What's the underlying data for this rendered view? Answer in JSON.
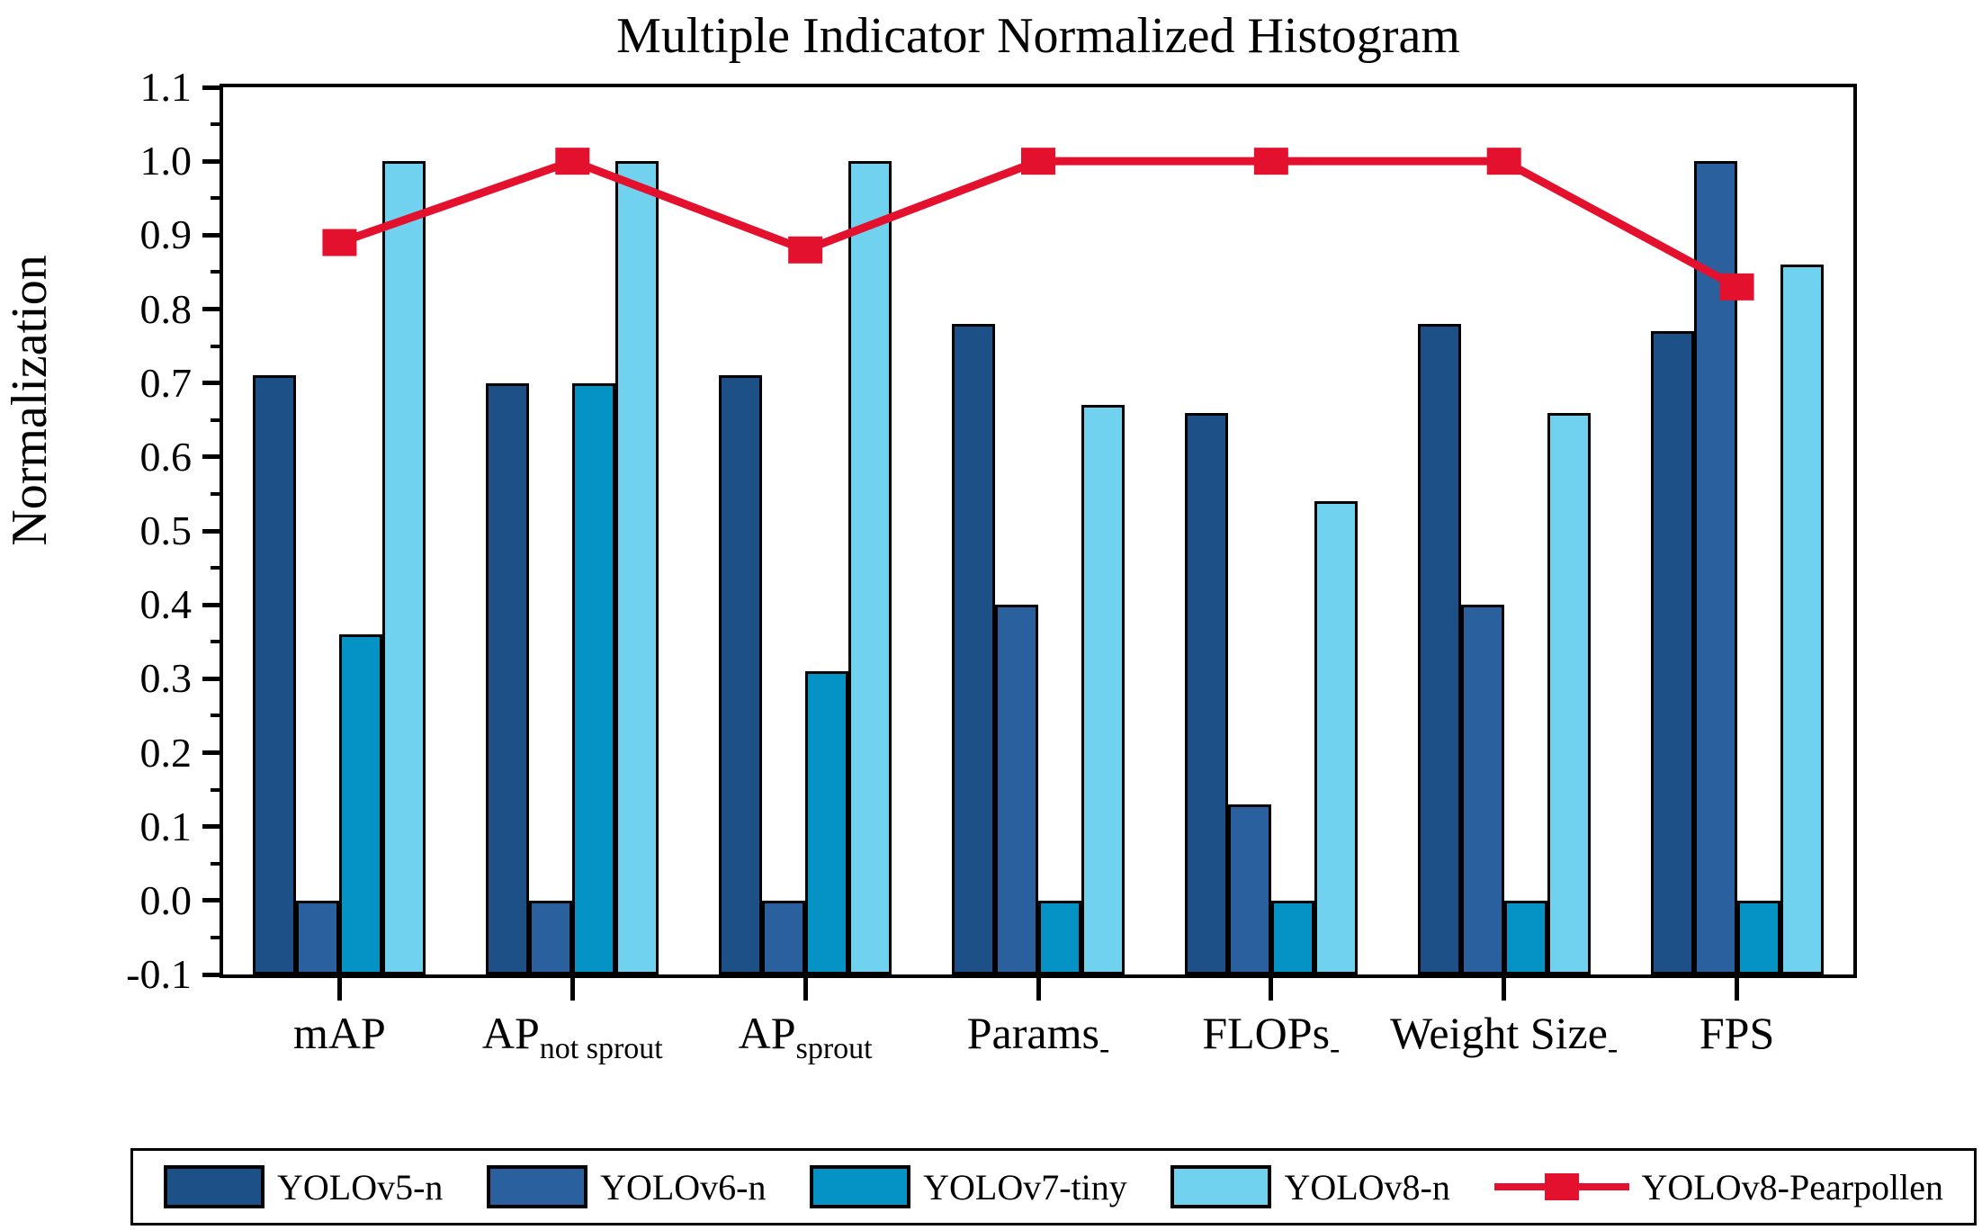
{
  "figure": {
    "title": "Multiple Indicator Normalized Histogram"
  },
  "chart_data": {
    "type": "bar+line",
    "title": "Multiple Indicator Normalized Histogram",
    "ylabel": "Normalization",
    "xlabel": "",
    "ylim": [
      -0.1,
      1.1
    ],
    "ytick_interval": 0.1,
    "minor_tick_interval": 0.05,
    "bar_baseline": -0.1,
    "grid": false,
    "legend_position": "bottom",
    "axis_color": "#000000",
    "categories": [
      {
        "label": "mAP",
        "sub": ""
      },
      {
        "label": "AP",
        "sub": "not sprout"
      },
      {
        "label": "AP",
        "sub": "sprout"
      },
      {
        "label": "Params",
        "sub": "-"
      },
      {
        "label": "FLOPs",
        "sub": "-"
      },
      {
        "label": "Weight Size",
        "sub": "-"
      },
      {
        "label": "FPS",
        "sub": ""
      }
    ],
    "series": [
      {
        "name": "YOLOv5-n",
        "color": "#1d5086",
        "values": [
          0.71,
          0.7,
          0.71,
          0.78,
          0.66,
          0.78,
          0.77
        ]
      },
      {
        "name": "YOLOv6-n",
        "color": "#2a609d",
        "values": [
          0.0,
          0.0,
          0.0,
          0.4,
          0.13,
          0.4,
          1.0
        ]
      },
      {
        "name": "YOLOv7-tiny",
        "color": "#0493c4",
        "values": [
          0.36,
          0.7,
          0.31,
          0.0,
          0.0,
          0.0,
          0.0
        ]
      },
      {
        "name": "YOLOv8-n",
        "color": "#70d2ef",
        "values": [
          1.0,
          1.0,
          1.0,
          0.67,
          0.54,
          0.66,
          0.86
        ]
      }
    ],
    "line_series": {
      "name": "YOLOv8-Pearpollen",
      "color": "#e3112d",
      "marker": "square",
      "values": [
        0.89,
        1.0,
        0.88,
        1.0,
        1.0,
        1.0,
        0.83
      ]
    }
  }
}
